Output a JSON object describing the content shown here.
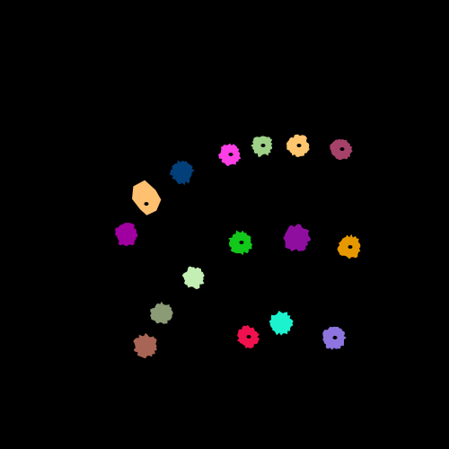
{
  "background": "#000000",
  "blobs": [
    {
      "id": "b1",
      "color": "#ff3fe6",
      "hole": true
    },
    {
      "id": "b2",
      "color": "#9ed187",
      "hole": true
    },
    {
      "id": "b3",
      "color": "#ffc56f",
      "hole": true
    },
    {
      "id": "b4",
      "color": "#a5426a",
      "hole": true
    },
    {
      "id": "b5",
      "color": "#033f78",
      "hole": false
    },
    {
      "id": "b6",
      "color": "#ffc070",
      "hole": true
    },
    {
      "id": "b7",
      "color": "#a0009f",
      "hole": false
    },
    {
      "id": "b8",
      "color": "#12c81a",
      "hole": true
    },
    {
      "id": "b9",
      "color": "#8f0ea0",
      "hole": false
    },
    {
      "id": "b10",
      "color": "#e69800",
      "hole": true
    },
    {
      "id": "b11",
      "color": "#c3eeb4",
      "hole": false
    },
    {
      "id": "b12",
      "color": "#8a9b76",
      "hole": false
    },
    {
      "id": "b13",
      "color": "#1df2cf",
      "hole": false
    },
    {
      "id": "b14",
      "color": "#f0124f",
      "hole": true
    },
    {
      "id": "b15",
      "color": "#8d74de",
      "hole": true
    },
    {
      "id": "b16",
      "color": "#a86454",
      "hole": false
    }
  ]
}
